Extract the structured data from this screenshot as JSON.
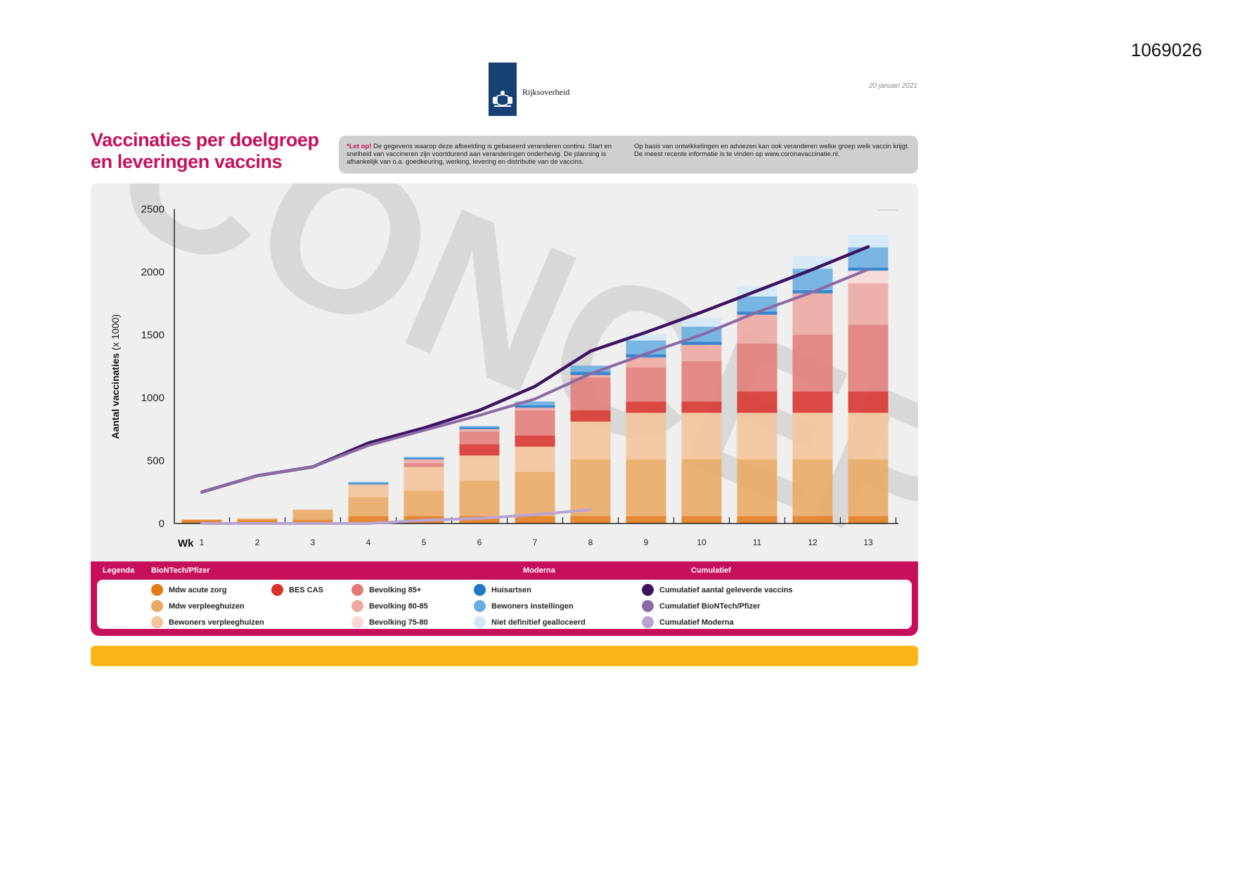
{
  "document_id": "1069026",
  "logo": {
    "text": "Rijksoverheid"
  },
  "date": "20 januari 2021",
  "title_line1": "Vaccinaties per doelgroep",
  "title_line2": "en leveringen vaccins",
  "notice": {
    "let_op": "*Let op!",
    "text1": " De gegevens waarop deze afbeelding is gebaseerd veranderen continu. Start en snelheid van vaccineren zijn voortdurend aan veranderingen onderhevig. De planning is afhankelijk van o.a. goedkeuring, werking, levering en distributie van de vaccins.",
    "text2": "Op basis van ontwikkelingen en adviezen kan ook veranderen welke groep welk vaccin krijgt. De meest recente informatie is te vinden op www.coronavaccinatie.nl."
  },
  "watermark": "CONCEPT",
  "colors": {
    "brand": "#c7105c",
    "yellow": "#fbb516",
    "rijks_blue": "#154273",
    "mdw_acute": "#e37a1a",
    "mdw_verpleeg": "#eba862",
    "bew_verpleeg": "#f2c499",
    "bes_cas": "#d8322b",
    "bev_85": "#e37b76",
    "bev_80_85": "#eea7a2",
    "bev_75_80": "#f8d7d7",
    "huisartsen": "#1f78c8",
    "bew_instellingen": "#69ade0",
    "niet_definitief": "#d3e8f7",
    "cum_totaal": "#3c1361",
    "cum_biontech": "#8a6aa5",
    "cum_moderna": "#b9a3cf"
  },
  "chart_data": {
    "type": "bar",
    "stacked": true,
    "title": "Vaccinaties per doelgroep en leveringen vaccins",
    "ylabel": "Aantal vaccinaties",
    "ylabel_unit": "(x 1000)",
    "xlabel": "Wk",
    "ylim": [
      0,
      2500
    ],
    "yticks": [
      0,
      500,
      1000,
      1500,
      2000,
      2500
    ],
    "categories": [
      "1",
      "2",
      "3",
      "4",
      "5",
      "6",
      "7",
      "8",
      "9",
      "10",
      "11",
      "12",
      "13"
    ],
    "series": [
      {
        "name": "Mdw acute zorg",
        "color_key": "mdw_acute",
        "values": [
          30,
          30,
          30,
          60,
          60,
          60,
          60,
          60,
          60,
          60,
          60,
          60,
          60
        ]
      },
      {
        "name": "Mdw verpleeghuizen",
        "color_key": "mdw_verpleeg",
        "values": [
          0,
          10,
          80,
          150,
          200,
          280,
          350,
          450,
          450,
          450,
          450,
          450,
          450
        ]
      },
      {
        "name": "Bewoners verpleeghuizen",
        "color_key": "bew_verpleeg",
        "values": [
          0,
          0,
          0,
          100,
          190,
          200,
          200,
          300,
          370,
          370,
          370,
          370,
          370
        ]
      },
      {
        "name": "BES CAS",
        "color_key": "bes_cas",
        "values": [
          0,
          0,
          0,
          0,
          0,
          90,
          90,
          90,
          90,
          90,
          170,
          170,
          170
        ]
      },
      {
        "name": "Bevolking 85+",
        "color_key": "bev_85",
        "values": [
          0,
          0,
          0,
          0,
          30,
          100,
          200,
          260,
          270,
          320,
          380,
          450,
          530
        ]
      },
      {
        "name": "Bevolking 80-85",
        "color_key": "bev_80_85",
        "values": [
          0,
          0,
          0,
          0,
          30,
          20,
          20,
          20,
          80,
          130,
          230,
          330,
          330
        ]
      },
      {
        "name": "Bevolking 75-80",
        "color_key": "bev_75_80",
        "values": [
          0,
          0,
          0,
          0,
          0,
          0,
          0,
          0,
          0,
          0,
          0,
          0,
          100
        ]
      },
      {
        "name": "Huisartsen",
        "color_key": "huisartsen",
        "values": [
          0,
          0,
          0,
          10,
          10,
          15,
          20,
          25,
          25,
          25,
          25,
          25,
          25
        ]
      },
      {
        "name": "Bewoners instellingen",
        "color_key": "bew_instellingen",
        "values": [
          0,
          0,
          0,
          10,
          10,
          10,
          30,
          50,
          110,
          120,
          120,
          170,
          160
        ]
      },
      {
        "name": "Niet definitief gealloceerd",
        "color_key": "niet_definitief",
        "values": [
          0,
          0,
          0,
          0,
          0,
          0,
          0,
          0,
          50,
          70,
          80,
          100,
          100
        ]
      }
    ],
    "lines": [
      {
        "name": "Cumulatief aantal geleverde vaccins",
        "color_key": "cum_totaal",
        "values": [
          250,
          380,
          450,
          640,
          760,
          900,
          1090,
          1370,
          1520,
          1680,
          1850,
          2020,
          2200
        ]
      },
      {
        "name": "Cumulatief BioNTech/Pfizer",
        "color_key": "cum_biontech",
        "values": [
          250,
          380,
          450,
          620,
          740,
          860,
          990,
          1190,
          1350,
          1500,
          1680,
          1840,
          2020
        ]
      },
      {
        "name": "Cumulatief Moderna",
        "color_key": "cum_moderna",
        "values": [
          0,
          0,
          0,
          0,
          25,
          40,
          70,
          110,
          null,
          null,
          null,
          null,
          null
        ]
      }
    ]
  },
  "legend": {
    "label": "Legenda",
    "group_biontech": "BioNTech/Pfizer",
    "group_moderna": "Moderna",
    "group_cumulatief": "Cumulatief",
    "items": {
      "mdw_acute": "Mdw acute zorg",
      "mdw_verpleeg": "Mdw verpleeghuizen",
      "bew_verpleeg": "Bewoners verpleeghuizen",
      "bes_cas": "BES CAS",
      "bev_85": "Bevolking 85+",
      "bev_80_85": "Bevolking 80-85",
      "bev_75_80": "Bevolking 75-80",
      "huisartsen": "Huisartsen",
      "bew_instellingen": "Bewoners instellingen",
      "niet_definitief": "Niet definitief gealloceerd",
      "cum_totaal": "Cumulatief aantal geleverde vaccins",
      "cum_biontech": "Cumulatief BioNTech/Pfizer",
      "cum_moderna": "Cumulatief Moderna"
    }
  }
}
